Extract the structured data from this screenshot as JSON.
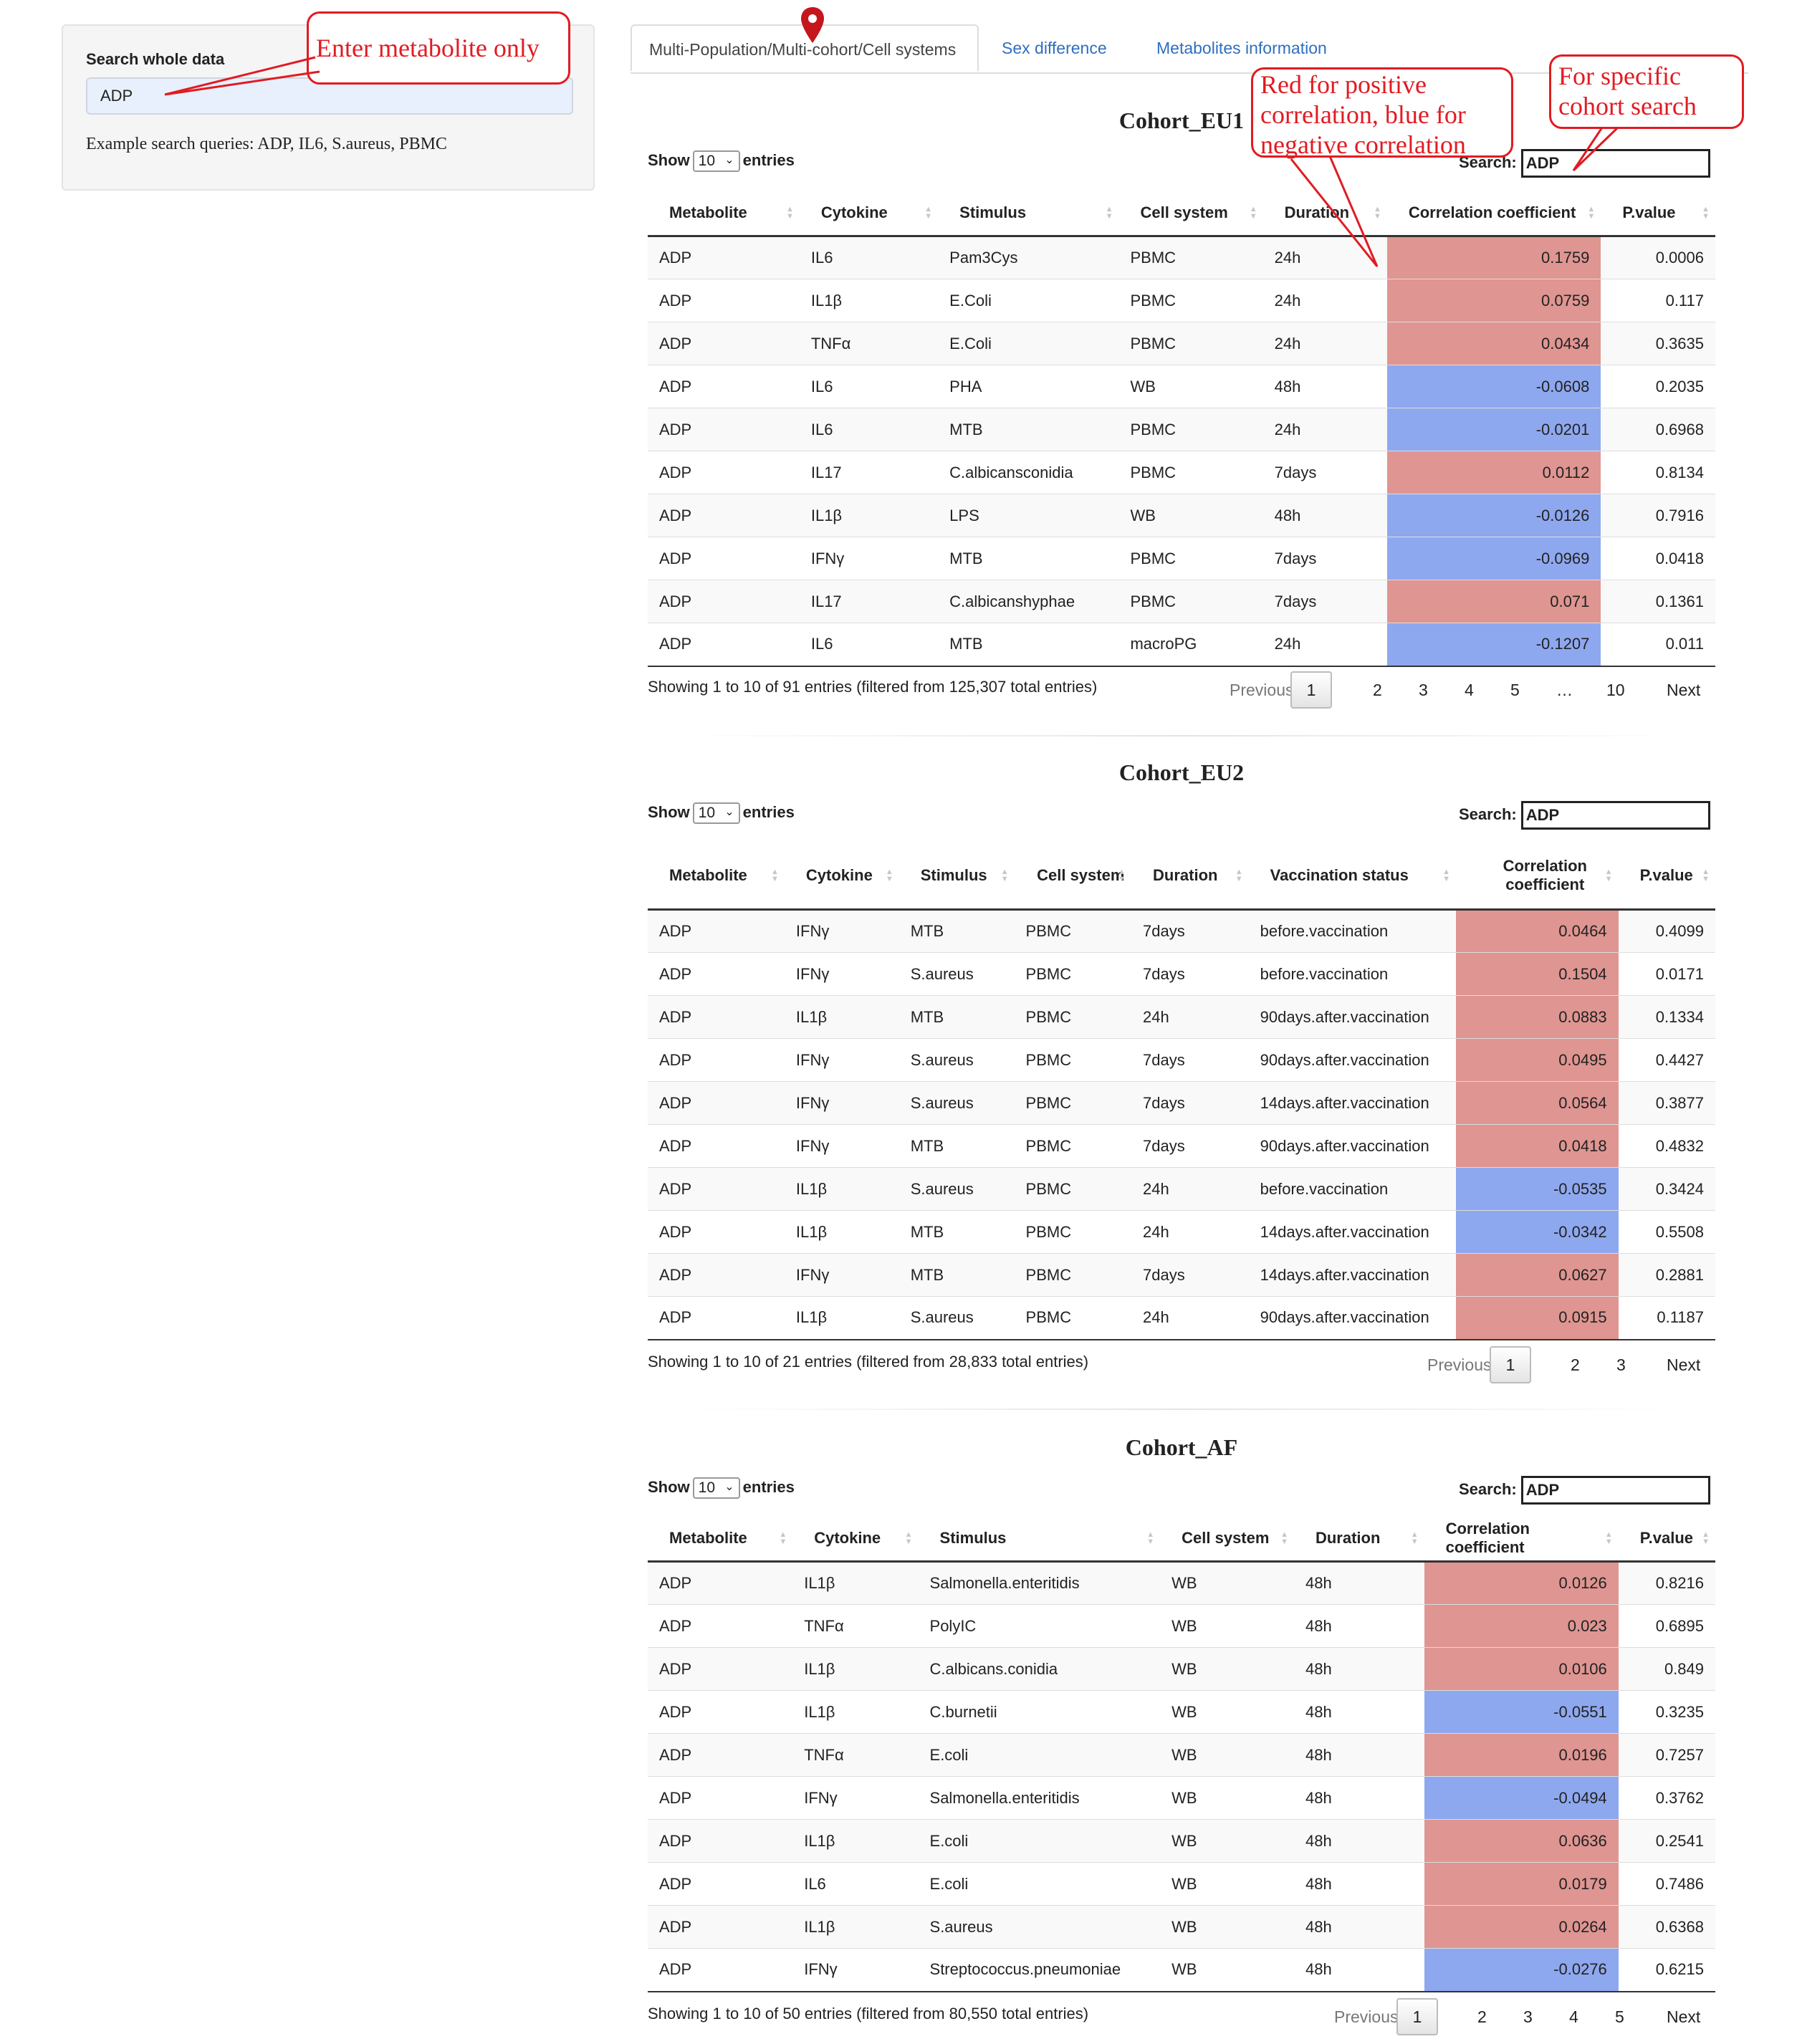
{
  "sidebar": {
    "label": "Search whole data",
    "value": "ADP",
    "example": "Example search queries: ADP, IL6, S.aureus, PBMC"
  },
  "tabs": [
    {
      "label": "Multi-Population/Multi-cohort/Cell systems",
      "active": true
    },
    {
      "label": "Sex difference",
      "active": false
    },
    {
      "label": "Metabolites information",
      "active": false
    }
  ],
  "callouts": {
    "metabolite": "Enter metabolite only",
    "color": "Red for positive correlation, blue for negative correlation",
    "cohort": "For specific cohort search"
  },
  "colors": {
    "positive": "#df9591",
    "negative": "#8ea8ef",
    "callout": "#e11b22",
    "link": "#2f6fbf"
  },
  "ui": {
    "show": "Show",
    "entries": "entries",
    "search": "Search:",
    "previous": "Previous",
    "next": "Next"
  },
  "eu1": {
    "title": "Cohort_EU1",
    "length": "10",
    "search": "ADP",
    "columns": [
      "Metabolite",
      "Cytokine",
      "Stimulus",
      "Cell system",
      "Duration",
      "Correlation coefficient",
      "P.value"
    ],
    "rows": [
      [
        "ADP",
        "IL6",
        "Pam3Cys",
        "PBMC",
        "24h",
        "0.1759",
        "0.0006"
      ],
      [
        "ADP",
        "IL1β",
        "E.Coli",
        "PBMC",
        "24h",
        "0.0759",
        "0.117"
      ],
      [
        "ADP",
        "TNFα",
        "E.Coli",
        "PBMC",
        "24h",
        "0.0434",
        "0.3635"
      ],
      [
        "ADP",
        "IL6",
        "PHA",
        "WB",
        "48h",
        "-0.0608",
        "0.2035"
      ],
      [
        "ADP",
        "IL6",
        "MTB",
        "PBMC",
        "24h",
        "-0.0201",
        "0.6968"
      ],
      [
        "ADP",
        "IL17",
        "C.albicansconidia",
        "PBMC",
        "7days",
        "0.0112",
        "0.8134"
      ],
      [
        "ADP",
        "IL1β",
        "LPS",
        "WB",
        "48h",
        "-0.0126",
        "0.7916"
      ],
      [
        "ADP",
        "IFNγ",
        "MTB",
        "PBMC",
        "7days",
        "-0.0969",
        "0.0418"
      ],
      [
        "ADP",
        "IL17",
        "C.albicanshyphae",
        "PBMC",
        "7days",
        "0.071",
        "0.1361"
      ],
      [
        "ADP",
        "IL6",
        "MTB",
        "macroPG",
        "24h",
        "-0.1207",
        "0.011"
      ]
    ],
    "info": "Showing 1 to 10 of 91 entries (filtered from 125,307 total entries)",
    "pages": [
      "1",
      "2",
      "3",
      "4",
      "5",
      "…",
      "10"
    ]
  },
  "eu2": {
    "title": "Cohort_EU2",
    "length": "10",
    "search": "ADP",
    "columns": [
      "Metabolite",
      "Cytokine",
      "Stimulus",
      "Cell system",
      "Duration",
      "Vaccination status",
      "Correlation coefficient",
      "P.value"
    ],
    "rows": [
      [
        "ADP",
        "IFNγ",
        "MTB",
        "PBMC",
        "7days",
        "before.vaccination",
        "0.0464",
        "0.4099"
      ],
      [
        "ADP",
        "IFNγ",
        "S.aureus",
        "PBMC",
        "7days",
        "before.vaccination",
        "0.1504",
        "0.0171"
      ],
      [
        "ADP",
        "IL1β",
        "MTB",
        "PBMC",
        "24h",
        "90days.after.vaccination",
        "0.0883",
        "0.1334"
      ],
      [
        "ADP",
        "IFNγ",
        "S.aureus",
        "PBMC",
        "7days",
        "90days.after.vaccination",
        "0.0495",
        "0.4427"
      ],
      [
        "ADP",
        "IFNγ",
        "S.aureus",
        "PBMC",
        "7days",
        "14days.after.vaccination",
        "0.0564",
        "0.3877"
      ],
      [
        "ADP",
        "IFNγ",
        "MTB",
        "PBMC",
        "7days",
        "90days.after.vaccination",
        "0.0418",
        "0.4832"
      ],
      [
        "ADP",
        "IL1β",
        "S.aureus",
        "PBMC",
        "24h",
        "before.vaccination",
        "-0.0535",
        "0.3424"
      ],
      [
        "ADP",
        "IL1β",
        "MTB",
        "PBMC",
        "24h",
        "14days.after.vaccination",
        "-0.0342",
        "0.5508"
      ],
      [
        "ADP",
        "IFNγ",
        "MTB",
        "PBMC",
        "7days",
        "14days.after.vaccination",
        "0.0627",
        "0.2881"
      ],
      [
        "ADP",
        "IL1β",
        "S.aureus",
        "PBMC",
        "24h",
        "90days.after.vaccination",
        "0.0915",
        "0.1187"
      ]
    ],
    "info": "Showing 1 to 10 of 21 entries (filtered from 28,833 total entries)",
    "pages": [
      "1",
      "2",
      "3"
    ]
  },
  "af": {
    "title": "Cohort_AF",
    "length": "10",
    "search": "ADP",
    "columns": [
      "Metabolite",
      "Cytokine",
      "Stimulus",
      "Cell system",
      "Duration",
      "Correlation coefficient",
      "P.value"
    ],
    "rows": [
      [
        "ADP",
        "IL1β",
        "Salmonella.enteritidis",
        "WB",
        "48h",
        "0.0126",
        "0.8216"
      ],
      [
        "ADP",
        "TNFα",
        "PolyIC",
        "WB",
        "48h",
        "0.023",
        "0.6895"
      ],
      [
        "ADP",
        "IL1β",
        "C.albicans.conidia",
        "WB",
        "48h",
        "0.0106",
        "0.849"
      ],
      [
        "ADP",
        "IL1β",
        "C.burnetii",
        "WB",
        "48h",
        "-0.0551",
        "0.3235"
      ],
      [
        "ADP",
        "TNFα",
        "E.coli",
        "WB",
        "48h",
        "0.0196",
        "0.7257"
      ],
      [
        "ADP",
        "IFNγ",
        "Salmonella.enteritidis",
        "WB",
        "48h",
        "-0.0494",
        "0.3762"
      ],
      [
        "ADP",
        "IL1β",
        "E.coli",
        "WB",
        "48h",
        "0.0636",
        "0.2541"
      ],
      [
        "ADP",
        "IL6",
        "E.coli",
        "WB",
        "48h",
        "0.0179",
        "0.7486"
      ],
      [
        "ADP",
        "IL1β",
        "S.aureus",
        "WB",
        "48h",
        "0.0264",
        "0.6368"
      ],
      [
        "ADP",
        "IFNγ",
        "Streptococcus.pneumoniae",
        "WB",
        "48h",
        "-0.0276",
        "0.6215"
      ]
    ],
    "info": "Showing 1 to 10 of 50 entries (filtered from 80,550 total entries)",
    "pages": [
      "1",
      "2",
      "3",
      "4",
      "5"
    ]
  }
}
